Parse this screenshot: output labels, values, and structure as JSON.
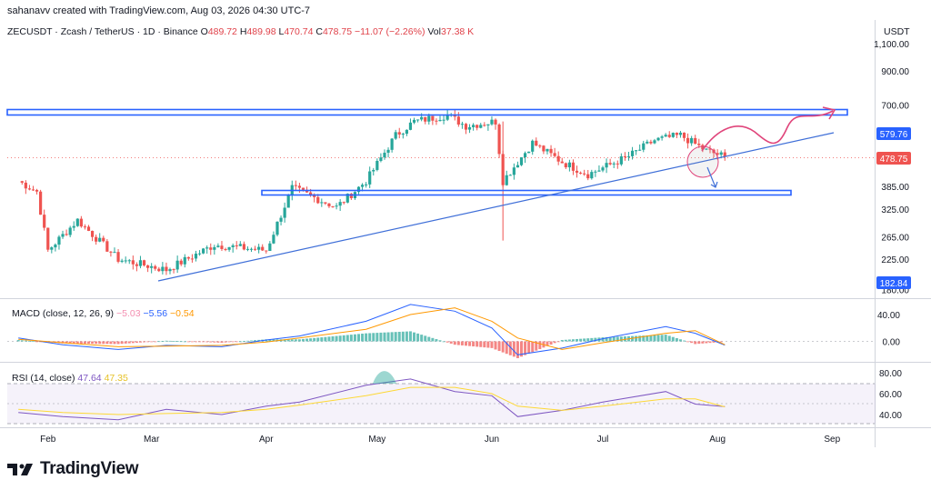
{
  "header": {
    "credit": "sahanavv created with TradingView.com, Aug 03, 2026 04:30 UTC-7"
  },
  "symbol": {
    "title": "ZECUSDT · Zcash / TetherUS · 1D · Binance",
    "o_label": "O",
    "o": "489.72",
    "h_label": "H",
    "h": "489.98",
    "l_label": "L",
    "l": "470.74",
    "c_label": "C",
    "c": "478.75",
    "change": "−11.07 (−2.26%)",
    "vol_label": "Vol",
    "vol": "37.38 K"
  },
  "currency": "USDT",
  "macd": {
    "label": "MACD (close, 12, 26, 9)",
    "v1": "−5.03",
    "v2": "−5.56",
    "v3": "−0.54"
  },
  "rsi": {
    "label": "RSI (14, close)",
    "v1": "47.64",
    "v2": "47.35"
  },
  "brand": {
    "name": "TradingView"
  },
  "colors": {
    "up": "#26a69a",
    "down": "#ef5350",
    "blue": "#2962ff",
    "trend": "#3f6fd8",
    "pink": "#e0457b",
    "macd_line": "#2962ff",
    "signal": "#ff9800",
    "rsi_line": "#7e57c2",
    "rsi_ma": "#fdd835"
  },
  "chart_data": [
    {
      "type": "candlestick",
      "title": "ZECUSDT · Zcash / TetherUS · 1D · Binance",
      "y_scale": "log",
      "ylim": [
        170,
        1300
      ],
      "y_ticks": [
        "1,100.00",
        "900.00",
        "700.00",
        "385.00",
        "325.00",
        "265.00",
        "225.00",
        "180.00"
      ],
      "x_ticks": [
        "Feb",
        "Mar",
        "Apr",
        "May",
        "Jun",
        "Jul",
        "Aug",
        "Sep"
      ],
      "last_price": "478.75",
      "price_tags": [
        "579.76",
        "182.84"
      ],
      "approx_close_path": [
        {
          "date": "2026-01-24",
          "close": 400
        },
        {
          "date": "2026-01-29",
          "close": 370
        },
        {
          "date": "2026-02-01",
          "close": 240
        },
        {
          "date": "2026-02-09",
          "close": 300
        },
        {
          "date": "2026-02-20",
          "close": 225
        },
        {
          "date": "2026-03-05",
          "close": 208
        },
        {
          "date": "2026-03-18",
          "close": 250
        },
        {
          "date": "2026-04-01",
          "close": 240
        },
        {
          "date": "2026-04-08",
          "close": 380
        },
        {
          "date": "2026-04-20",
          "close": 330
        },
        {
          "date": "2026-04-28",
          "close": 400
        },
        {
          "date": "2026-05-06",
          "close": 560
        },
        {
          "date": "2026-05-11",
          "close": 620
        },
        {
          "date": "2026-05-20",
          "close": 650
        },
        {
          "date": "2026-05-25",
          "close": 600
        },
        {
          "date": "2026-06-02",
          "close": 620
        },
        {
          "date": "2026-06-04",
          "close": 400
        },
        {
          "date": "2026-06-12",
          "close": 530
        },
        {
          "date": "2026-06-20",
          "close": 460
        },
        {
          "date": "2026-06-27",
          "close": 420
        },
        {
          "date": "2026-07-08",
          "close": 480
        },
        {
          "date": "2026-07-15",
          "close": 540
        },
        {
          "date": "2026-07-22",
          "close": 560
        },
        {
          "date": "2026-07-29",
          "close": 500
        },
        {
          "date": "2026-08-03",
          "close": 478.75
        }
      ]
    },
    {
      "type": "line",
      "title": "MACD (close, 12, 26, 9)",
      "y_ticks": [
        "40.00",
        "0.00"
      ],
      "series": [
        {
          "name": "MACD",
          "values": [
            5,
            -5,
            -12,
            -6,
            -8,
            2,
            8,
            30,
            55,
            45,
            20,
            -20,
            -10,
            4,
            22,
            12,
            -5.56
          ]
        },
        {
          "name": "Signal",
          "values": [
            3,
            -2,
            -8,
            -7,
            -6,
            -1,
            5,
            18,
            40,
            50,
            30,
            5,
            -12,
            -2,
            12,
            16,
            -5.03
          ]
        }
      ]
    },
    {
      "type": "line",
      "title": "RSI (14, close)",
      "y_ticks": [
        "80.00",
        "60.00",
        "40.00"
      ],
      "bands": [
        70,
        30
      ],
      "series": [
        {
          "name": "RSI",
          "values": [
            42,
            38,
            35,
            45,
            40,
            48,
            52,
            68,
            74,
            62,
            58,
            38,
            44,
            52,
            62,
            50,
            47.64
          ]
        },
        {
          "name": "RSI MA",
          "values": [
            45,
            42,
            40,
            41,
            42,
            45,
            49,
            58,
            66,
            66,
            60,
            48,
            44,
            48,
            55,
            55,
            47.35
          ]
        }
      ]
    }
  ]
}
